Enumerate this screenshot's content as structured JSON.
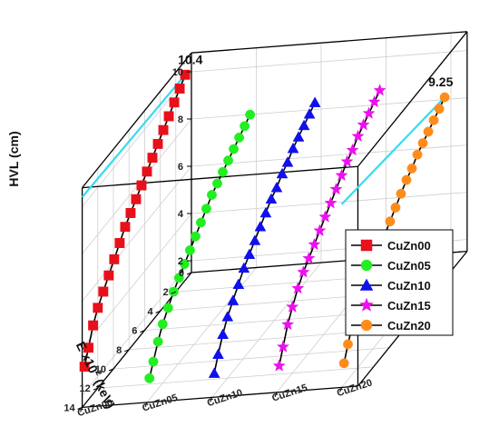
{
  "chart_data": {
    "type": "line3d",
    "title": "",
    "ylabel": "HVL (cm)",
    "xlabel": "E x10",
    "xlabel_sup": "2",
    "xlabel_unit": " (keV)",
    "y_ticks": [
      "2",
      "4",
      "6",
      "8",
      "10"
    ],
    "ylim": [
      1.5,
      10.8
    ],
    "x_ticks": [
      "0",
      "2",
      "4",
      "6",
      "8",
      "10",
      "12",
      "14"
    ],
    "xlim": [
      0,
      14
    ],
    "categories": [
      "CuZn00",
      "CuZn05",
      "CuZn10",
      "CuZn15",
      "CuZn20"
    ],
    "grid": true,
    "legend_position": "bottom-right",
    "series": [
      {
        "name": "CuZn00",
        "color": "#e8101a",
        "marker": "square",
        "x": [
          0.3,
          0.8,
          1.4,
          2.0,
          2.7,
          3.4,
          4.1,
          4.8,
          5.5,
          6.2,
          6.9,
          7.6,
          8.3,
          9.0,
          9.7,
          10.4,
          11.1,
          11.8,
          12.5,
          13.2
        ],
        "y": [
          3.1,
          3.7,
          4.4,
          4.9,
          5.3,
          5.7,
          6.1,
          6.5,
          6.9,
          7.2,
          7.5,
          7.8,
          8.1,
          8.4,
          8.7,
          9.0,
          9.3,
          9.6,
          9.9,
          10.2
        ]
      },
      {
        "name": "CuZn05",
        "color": "#22ee22",
        "marker": "circle",
        "x": [
          0.3,
          0.8,
          1.4,
          2.0,
          2.7,
          3.4,
          4.1,
          4.8,
          5.5,
          6.2,
          6.9,
          7.6,
          8.3,
          9.0,
          9.7,
          10.4,
          11.1,
          11.8,
          12.5,
          13.2
        ],
        "y": [
          2.4,
          2.9,
          3.5,
          4.0,
          4.4,
          4.8,
          5.1,
          5.4,
          5.7,
          6.0,
          6.3,
          6.6,
          6.9,
          7.1,
          7.3,
          7.5,
          7.7,
          7.9,
          8.1,
          8.3
        ]
      },
      {
        "name": "CuZn10",
        "color": "#1010ee",
        "marker": "triangle",
        "x": [
          0.3,
          0.8,
          1.4,
          2.0,
          2.7,
          3.4,
          4.1,
          4.8,
          5.5,
          6.2,
          6.9,
          7.6,
          8.3,
          9.0,
          9.7,
          10.4,
          11.1,
          11.8,
          12.5,
          13.2
        ],
        "y": [
          2.4,
          3.0,
          3.6,
          4.1,
          4.5,
          4.9,
          5.3,
          5.6,
          5.9,
          6.2,
          6.5,
          6.8,
          7.0,
          7.3,
          7.5,
          7.8,
          8.0,
          8.2,
          8.4,
          8.6
        ]
      },
      {
        "name": "CuZn15",
        "color": "#ee10ee",
        "marker": "star",
        "x": [
          0.3,
          0.8,
          1.4,
          2.0,
          2.7,
          3.4,
          4.1,
          4.8,
          5.5,
          6.2,
          6.9,
          7.6,
          8.3,
          9.0,
          9.7,
          10.4,
          11.1,
          11.8,
          12.5,
          13.2
        ],
        "y": [
          2.5,
          3.1,
          3.8,
          4.3,
          4.8,
          5.2,
          5.5,
          5.8,
          6.1,
          6.4,
          6.7,
          7.0,
          7.3,
          7.6,
          7.8,
          8.1,
          8.3,
          8.5,
          8.7,
          8.9
        ]
      },
      {
        "name": "CuZn20",
        "color": "#ff8c1a",
        "marker": "circle",
        "x": [
          0.3,
          0.8,
          1.4,
          2.0,
          2.7,
          3.4,
          4.1,
          4.8,
          5.5,
          6.2,
          6.9,
          7.6,
          8.3,
          9.0,
          9.7,
          10.4,
          11.1,
          11.8,
          12.5,
          13.2
        ],
        "y": [
          2.4,
          3.0,
          3.6,
          4.0,
          4.4,
          4.8,
          5.1,
          5.4,
          5.7,
          6.0,
          6.3,
          6.6,
          6.9,
          7.1,
          7.4,
          7.6,
          7.8,
          8.0,
          8.2,
          8.4
        ]
      }
    ],
    "annotations": [
      {
        "text": "10.4",
        "series": "CuZn00",
        "value": 10.4
      },
      {
        "text": "9.25",
        "series": "CuZn20",
        "value": 9.25
      }
    ],
    "reference_line_color": "#33ddee"
  }
}
